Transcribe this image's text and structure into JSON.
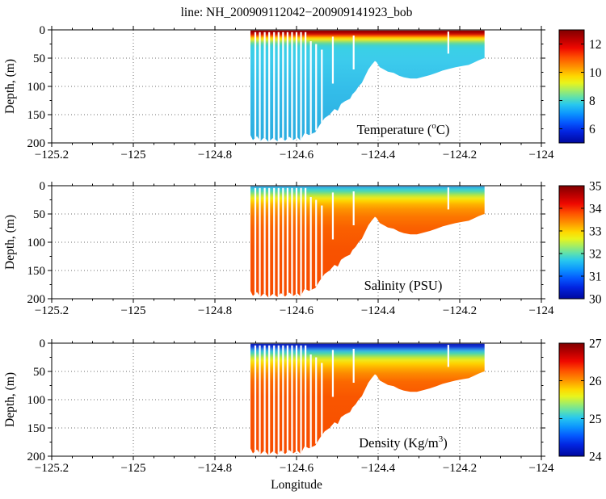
{
  "title": "line: NH_200909112042−200909141923_bob",
  "axes": {
    "xlabel": "Longitude",
    "ylabel": "Depth, (m)",
    "x_range": [
      -125.2,
      -124
    ],
    "x_tick_values": [
      -125.2,
      -125,
      -124.8,
      -124.6,
      -124.4,
      -124.2,
      -124
    ],
    "x_tick_labels": [
      "−125.2",
      "−125",
      "−124.8",
      "−124.6",
      "−124.4",
      "−124.2",
      "−124"
    ],
    "x_minor_step": 0.05,
    "y_range": [
      0,
      200
    ],
    "y_tick_values": [
      0,
      50,
      100,
      150,
      200
    ],
    "y_tick_labels": [
      "0",
      "50",
      "100",
      "150",
      "200"
    ],
    "y_minor_step": 25,
    "grid_style": "dotted"
  },
  "chart_data": {
    "type": "heatmap",
    "colormap": "jet",
    "x_extent": [
      -124.713,
      -124.139
    ],
    "depth_extent": [
      0,
      200
    ],
    "panels": [
      {
        "name": "temperature",
        "label_parts": [
          {
            "t": "Temperature ("
          },
          {
            "t": "o",
            "sup": true
          },
          {
            "t": "C)"
          }
        ],
        "colorbar": {
          "min": 5,
          "max": 13,
          "tick_values": [
            12,
            10,
            8,
            6
          ],
          "tick_labels": [
            "12",
            "10",
            "8",
            "6"
          ]
        },
        "strata_depth_color": [
          [
            0,
            "#7f0000"
          ],
          [
            5,
            "#ad0000"
          ],
          [
            8,
            "#d81e00"
          ],
          [
            10,
            "#f25000"
          ],
          [
            12,
            "#fe8800"
          ],
          [
            14,
            "#fec800"
          ],
          [
            17,
            "#eee821"
          ],
          [
            20,
            "#aee25b"
          ],
          [
            24,
            "#63d89f"
          ],
          [
            28,
            "#41d2cf"
          ],
          [
            33,
            "#3ad0e6"
          ],
          [
            55,
            "#3ccbec"
          ],
          [
            110,
            "#33bce9"
          ],
          [
            200,
            "#2aabdf"
          ]
        ]
      },
      {
        "name": "salinity",
        "label_parts": [
          {
            "t": "Salinity (PSU)"
          }
        ],
        "colorbar": {
          "min": 30,
          "max": 35,
          "tick_values": [
            35,
            34,
            33,
            32,
            31,
            30
          ],
          "tick_labels": [
            "35",
            "34",
            "33",
            "32",
            "31",
            "30"
          ]
        },
        "strata_depth_color": [
          [
            0,
            "#2b7ce2"
          ],
          [
            3,
            "#33b2de"
          ],
          [
            6,
            "#3ccad8"
          ],
          [
            10,
            "#52d8ac"
          ],
          [
            14,
            "#8ae070"
          ],
          [
            18,
            "#c4e738"
          ],
          [
            22,
            "#eee81e"
          ],
          [
            27,
            "#fed400"
          ],
          [
            33,
            "#feb200"
          ],
          [
            42,
            "#fd9200"
          ],
          [
            55,
            "#fc7600"
          ],
          [
            75,
            "#fa6000"
          ],
          [
            115,
            "#f85200"
          ],
          [
            200,
            "#f74c00"
          ]
        ]
      },
      {
        "name": "density",
        "label_parts": [
          {
            "t": "Density (Kg/m"
          },
          {
            "t": "3",
            "sup": true
          },
          {
            "t": ")"
          }
        ],
        "colorbar": {
          "min": 24,
          "max": 27,
          "tick_values": [
            27,
            26,
            25,
            24
          ],
          "tick_labels": [
            "27",
            "26",
            "25",
            "24"
          ]
        },
        "strata_depth_color": [
          [
            0,
            "#0a16ac"
          ],
          [
            6,
            "#1334d4"
          ],
          [
            10,
            "#2b7ce2"
          ],
          [
            14,
            "#37bade"
          ],
          [
            18,
            "#4ad4b0"
          ],
          [
            22,
            "#88df70"
          ],
          [
            26,
            "#c4e738"
          ],
          [
            30,
            "#eee81e"
          ],
          [
            36,
            "#fed200"
          ],
          [
            44,
            "#feac00"
          ],
          [
            54,
            "#fc8800"
          ],
          [
            68,
            "#fb6800"
          ],
          [
            95,
            "#f95600"
          ],
          [
            200,
            "#f74c00"
          ]
        ]
      }
    ],
    "bathymetry_lon_depth": [
      [
        -124.713,
        186
      ],
      [
        -124.707,
        195
      ],
      [
        -124.697,
        188
      ],
      [
        -124.689,
        197
      ],
      [
        -124.679,
        190
      ],
      [
        -124.669,
        198
      ],
      [
        -124.657,
        191
      ],
      [
        -124.647,
        197
      ],
      [
        -124.638,
        190
      ],
      [
        -124.628,
        196
      ],
      [
        -124.618,
        189
      ],
      [
        -124.608,
        195
      ],
      [
        -124.598,
        190
      ],
      [
        -124.59,
        196
      ],
      [
        -124.58,
        182
      ],
      [
        -124.57,
        186
      ],
      [
        -124.554,
        181
      ],
      [
        -124.543,
        168
      ],
      [
        -124.531,
        156
      ],
      [
        -124.519,
        150
      ],
      [
        -124.507,
        140
      ],
      [
        -124.499,
        143
      ],
      [
        -124.491,
        131
      ],
      [
        -124.481,
        126
      ],
      [
        -124.469,
        122
      ],
      [
        -124.463,
        114
      ],
      [
        -124.455,
        108
      ],
      [
        -124.448,
        100
      ],
      [
        -124.44,
        94
      ],
      [
        -124.432,
        82
      ],
      [
        -124.424,
        70
      ],
      [
        -124.416,
        62
      ],
      [
        -124.408,
        55
      ],
      [
        -124.404,
        57
      ],
      [
        -124.396,
        66
      ],
      [
        -124.386,
        70
      ],
      [
        -124.376,
        74
      ],
      [
        -124.362,
        76
      ],
      [
        -124.349,
        81
      ],
      [
        -124.337,
        84
      ],
      [
        -124.321,
        86
      ],
      [
        -124.305,
        86
      ],
      [
        -124.289,
        83
      ],
      [
        -124.273,
        80
      ],
      [
        -124.257,
        76
      ],
      [
        -124.242,
        72
      ],
      [
        -124.226,
        69
      ],
      [
        -124.21,
        66
      ],
      [
        -124.194,
        64
      ],
      [
        -124.178,
        62
      ],
      [
        -124.166,
        58
      ],
      [
        -124.154,
        54
      ],
      [
        -124.144,
        51
      ],
      [
        -124.139,
        50
      ]
    ],
    "profile_gap_stripes": [
      {
        "lon": -124.701,
        "top": 4,
        "bottom": 200
      },
      {
        "lon": -124.69,
        "top": 4,
        "bottom": 200
      },
      {
        "lon": -124.678,
        "top": 4,
        "bottom": 200
      },
      {
        "lon": -124.667,
        "top": 4,
        "bottom": 200
      },
      {
        "lon": -124.655,
        "top": 4,
        "bottom": 200
      },
      {
        "lon": -124.644,
        "top": 4,
        "bottom": 200
      },
      {
        "lon": -124.633,
        "top": 4,
        "bottom": 200
      },
      {
        "lon": -124.622,
        "top": 4,
        "bottom": 200
      },
      {
        "lon": -124.611,
        "top": 4,
        "bottom": 200
      },
      {
        "lon": -124.6,
        "top": 4,
        "bottom": 200
      },
      {
        "lon": -124.589,
        "top": 4,
        "bottom": 200
      },
      {
        "lon": -124.578,
        "top": 4,
        "bottom": 200
      },
      {
        "lon": -124.565,
        "top": 20,
        "bottom": 185
      },
      {
        "lon": -124.552,
        "top": 25,
        "bottom": 178
      },
      {
        "lon": -124.538,
        "top": 35,
        "bottom": 168
      },
      {
        "lon": -124.511,
        "top": 12,
        "bottom": 95
      },
      {
        "lon": -124.46,
        "top": 10,
        "bottom": 70
      },
      {
        "lon": -124.228,
        "top": 3,
        "bottom": 42
      }
    ],
    "jet_colorbar_stops": [
      [
        0,
        "#7f0000"
      ],
      [
        0.08,
        "#b80000"
      ],
      [
        0.16,
        "#ef0800"
      ],
      [
        0.24,
        "#fe4e00"
      ],
      [
        0.33,
        "#fe9400"
      ],
      [
        0.41,
        "#fed800"
      ],
      [
        0.47,
        "#e8f41c"
      ],
      [
        0.53,
        "#a8ee60"
      ],
      [
        0.6,
        "#5ce0b0"
      ],
      [
        0.66,
        "#28c8ee"
      ],
      [
        0.74,
        "#0c96fe"
      ],
      [
        0.82,
        "#0458fe"
      ],
      [
        0.9,
        "#0224e0"
      ],
      [
        1,
        "#00089f"
      ]
    ]
  }
}
